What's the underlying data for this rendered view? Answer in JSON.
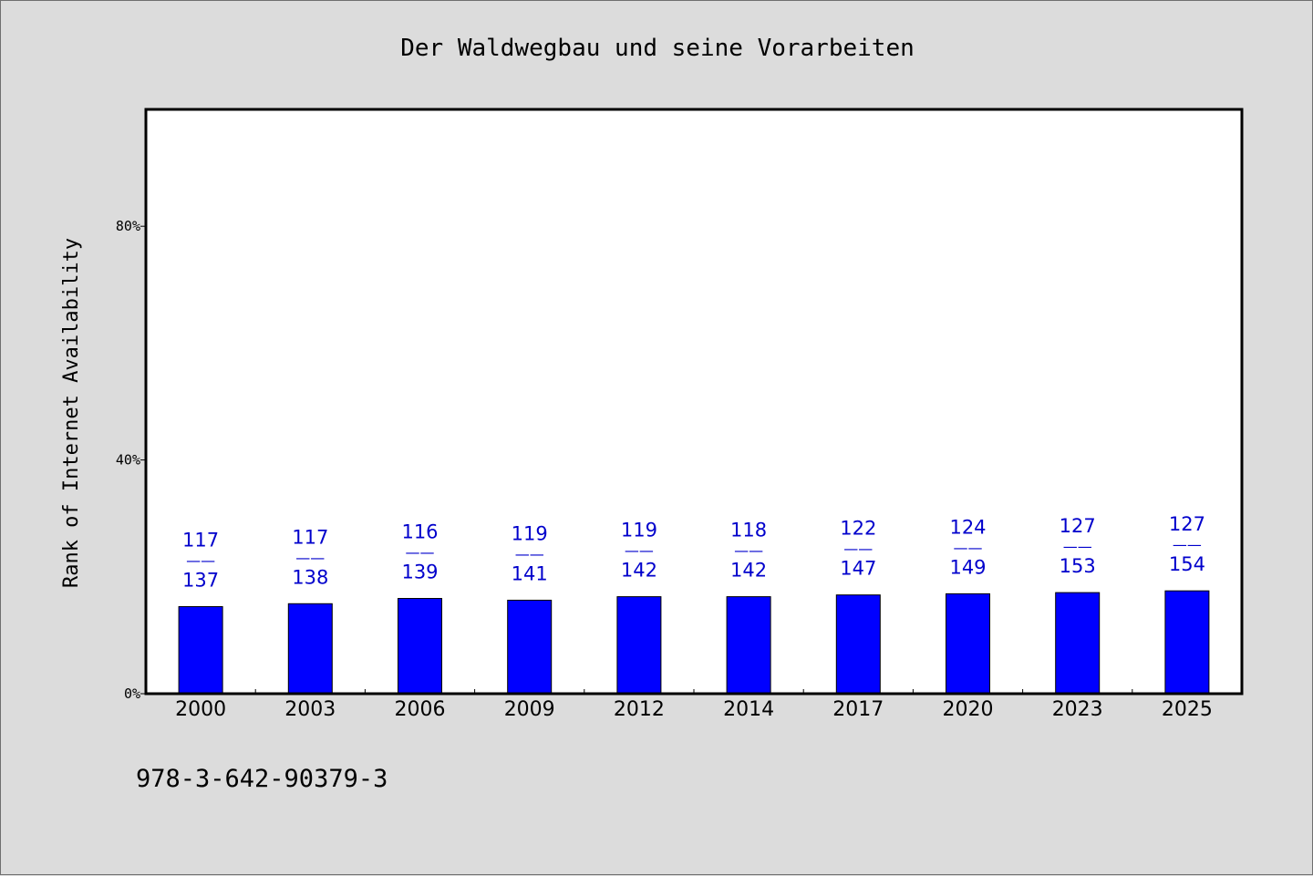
{
  "colors": {
    "background": "#dcdcdc",
    "plot_background": "#ffffff",
    "bar": "#0000ff",
    "label": "#0000cc",
    "axis": "#000000"
  },
  "footer": {
    "isbn": "978-3-642-90379-3"
  },
  "chart_data": {
    "type": "bar",
    "title": "Der Waldwegbau und seine Vorarbeiten",
    "xlabel": "",
    "ylabel": "Rank of Internet Availability",
    "ylim": [
      0,
      100
    ],
    "yticks": [
      {
        "value": 0,
        "label": "0%"
      },
      {
        "value": 40,
        "label": "40%"
      },
      {
        "value": 80,
        "label": "80%"
      }
    ],
    "grid": false,
    "categories": [
      "2000",
      "2003",
      "2006",
      "2009",
      "2012",
      "2014",
      "2017",
      "2020",
      "2023",
      "2025"
    ],
    "values": [
      14.9,
      15.4,
      16.3,
      16.0,
      16.6,
      16.6,
      16.9,
      17.1,
      17.3,
      17.6
    ],
    "labels": [
      {
        "rank": "117",
        "separator": "——",
        "total": "137"
      },
      {
        "rank": "117",
        "separator": "——",
        "total": "138"
      },
      {
        "rank": "116",
        "separator": "——",
        "total": "139"
      },
      {
        "rank": "119",
        "separator": "——",
        "total": "141"
      },
      {
        "rank": "119",
        "separator": "——",
        "total": "142"
      },
      {
        "rank": "118",
        "separator": "——",
        "total": "142"
      },
      {
        "rank": "122",
        "separator": "——",
        "total": "147"
      },
      {
        "rank": "124",
        "separator": "——",
        "total": "149"
      },
      {
        "rank": "127",
        "separator": "——",
        "total": "153"
      },
      {
        "rank": "127",
        "separator": "——",
        "total": "154"
      }
    ]
  }
}
